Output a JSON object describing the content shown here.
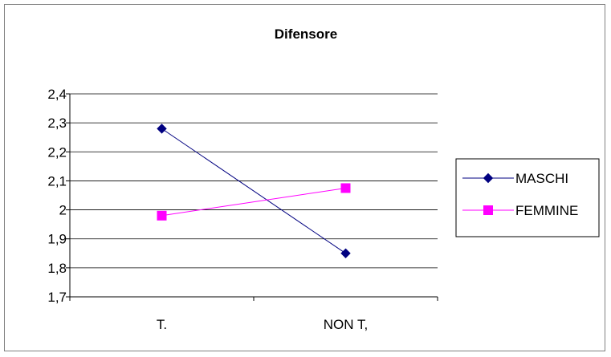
{
  "chart_data": {
    "type": "line",
    "title": "Difensore",
    "categories": [
      "T.",
      "NON T,"
    ],
    "series": [
      {
        "name": "MASCHI",
        "values": [
          2.28,
          1.85
        ],
        "color": "#000080",
        "marker": "diamond"
      },
      {
        "name": "FEMMINE",
        "values": [
          1.98,
          2.075
        ],
        "color": "#FF00FF",
        "marker": "square"
      }
    ],
    "ylim": [
      1.7,
      2.4
    ],
    "yticks": [
      "1,7",
      "1,8",
      "1,9",
      "2",
      "2,1",
      "2,2",
      "2,3",
      "2,4"
    ],
    "grid": true,
    "legend": "right"
  }
}
